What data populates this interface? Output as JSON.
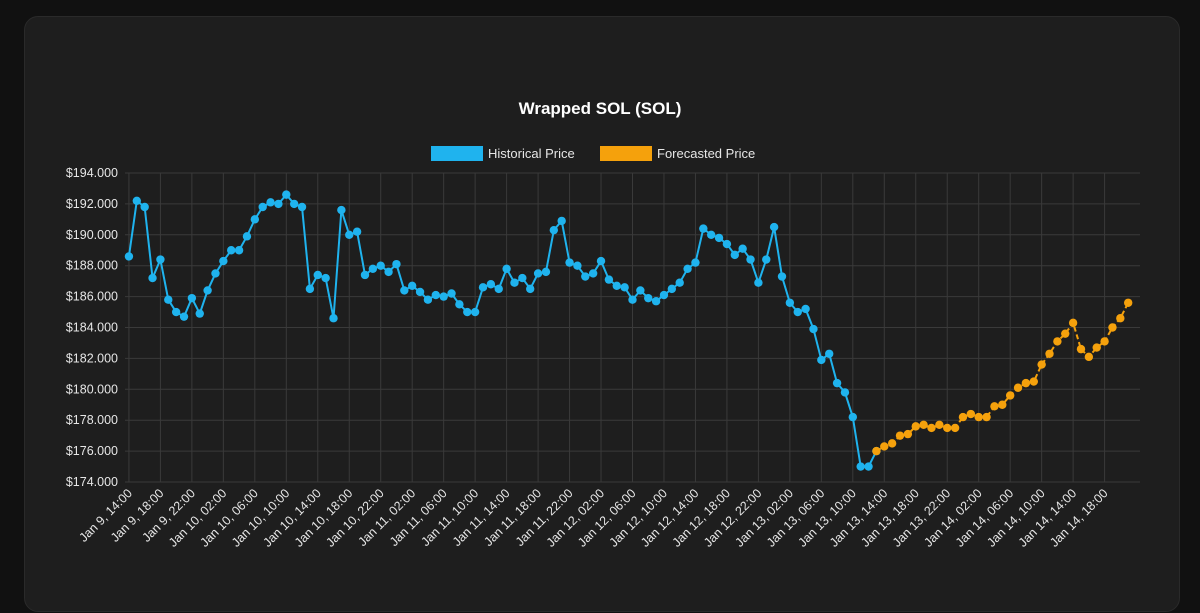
{
  "chart_data": {
    "type": "line",
    "title": "Wrapped SOL (SOL)",
    "legend": [
      "Historical Price",
      "Forecasted Price"
    ],
    "legend_position": "top",
    "grid": true,
    "colors": {
      "historical": "#1fb3ee",
      "forecast": "#f5a10c"
    },
    "ylim": [
      174,
      194
    ],
    "y_ticks": [
      "$194.000",
      "$192.000",
      "$190.000",
      "$188.000",
      "$186.000",
      "$184.000",
      "$182.000",
      "$180.000",
      "$178.000",
      "$176.000",
      "$174.000"
    ],
    "x_tick_labels": [
      "Jan 9, 14:00",
      "Jan 9, 18:00",
      "Jan 9, 22:00",
      "Jan 10, 02:00",
      "Jan 10, 06:00",
      "Jan 10, 10:00",
      "Jan 10, 14:00",
      "Jan 10, 18:00",
      "Jan 10, 22:00",
      "Jan 11, 02:00",
      "Jan 11, 06:00",
      "Jan 11, 10:00",
      "Jan 11, 14:00",
      "Jan 11, 18:00",
      "Jan 11, 22:00",
      "Jan 12, 02:00",
      "Jan 12, 06:00",
      "Jan 12, 10:00",
      "Jan 12, 14:00",
      "Jan 12, 18:00",
      "Jan 12, 22:00",
      "Jan 13, 02:00",
      "Jan 13, 06:00",
      "Jan 13, 10:00",
      "Jan 13, 14:00",
      "Jan 13, 18:00",
      "Jan 13, 22:00",
      "Jan 14, 02:00",
      "Jan 14, 06:00",
      "Jan 14, 10:00",
      "Jan 14, 14:00",
      "Jan 14, 18:00"
    ],
    "series": [
      {
        "name": "Historical Price",
        "values": [
          188.6,
          192.2,
          191.8,
          187.2,
          188.4,
          185.8,
          185.0,
          184.7,
          185.9,
          184.9,
          186.4,
          187.5,
          188.3,
          189.0,
          189.0,
          189.9,
          191.0,
          191.8,
          192.1,
          192.0,
          192.6,
          192.0,
          191.8,
          186.5,
          187.4,
          187.2,
          184.6,
          191.6,
          190.0,
          190.2,
          187.4,
          187.8,
          188.0,
          187.6,
          188.1,
          186.4,
          186.7,
          186.3,
          185.8,
          186.1,
          186.0,
          186.2,
          185.5,
          185.0,
          185.0,
          186.6,
          186.8,
          186.5,
          187.8,
          186.9,
          187.2,
          186.5,
          187.5,
          187.6,
          190.3,
          190.9,
          188.2,
          188.0,
          187.3,
          187.5,
          188.3,
          187.1,
          186.7,
          186.6,
          185.8,
          186.4,
          185.9,
          185.7,
          186.1,
          186.5,
          186.9,
          187.8,
          188.2,
          190.4,
          190.0,
          189.8,
          189.4,
          188.7,
          189.1,
          188.4,
          186.9,
          188.4,
          190.5,
          187.3,
          185.6,
          185.0,
          185.2,
          183.9,
          181.9,
          182.3,
          180.4,
          179.8,
          178.2,
          175.0,
          175.0,
          176.0
        ]
      },
      {
        "name": "Forecasted Price",
        "values": [
          176.0,
          176.3,
          176.5,
          177.0,
          177.1,
          177.6,
          177.7,
          177.5,
          177.7,
          177.5,
          177.5,
          178.2,
          178.4,
          178.2,
          178.2,
          178.9,
          179.0,
          179.6,
          180.1,
          180.4,
          180.5,
          181.6,
          182.3,
          183.1,
          183.6,
          184.3,
          182.6,
          182.1,
          182.7,
          183.1,
          184.0,
          184.6,
          185.6
        ]
      }
    ]
  }
}
